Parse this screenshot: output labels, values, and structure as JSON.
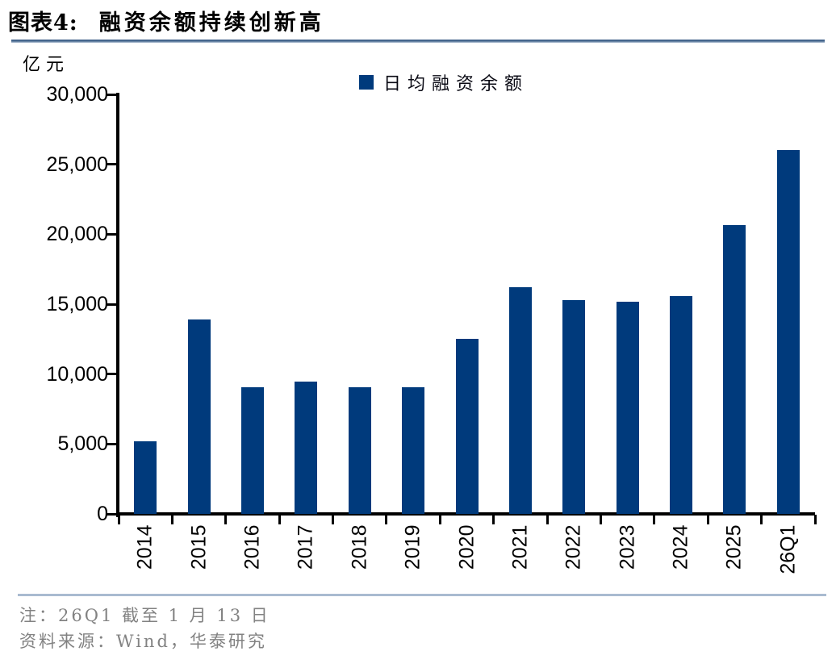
{
  "header": {
    "label": "图表4:",
    "title": "融资余额持续创新高"
  },
  "chart": {
    "unit_label": "亿元",
    "legend_label": "日均融资余额",
    "bar_color": "#003a7c"
  },
  "chart_data": {
    "type": "bar",
    "title": "融资余额持续创新高",
    "ylabel": "亿元",
    "xlabel": "",
    "legend": [
      "日均融资余额"
    ],
    "legend_position": "top-center",
    "grid": false,
    "categories": [
      "2014",
      "2015",
      "2016",
      "2017",
      "2018",
      "2019",
      "2020",
      "2021",
      "2022",
      "2023",
      "2024",
      "2025",
      "26Q1"
    ],
    "values": [
      5200,
      13900,
      9050,
      9450,
      9050,
      9050,
      12500,
      16200,
      15300,
      15150,
      15550,
      20650,
      26000
    ],
    "ylim": [
      0,
      30000
    ],
    "y_ticks": [
      0,
      5000,
      10000,
      15000,
      20000,
      25000,
      30000
    ],
    "bar_color": "#003a7c"
  },
  "footer": {
    "note": "注：26Q1 截至 1 月 13 日",
    "source": "资料来源：Wind，华泰研究"
  }
}
